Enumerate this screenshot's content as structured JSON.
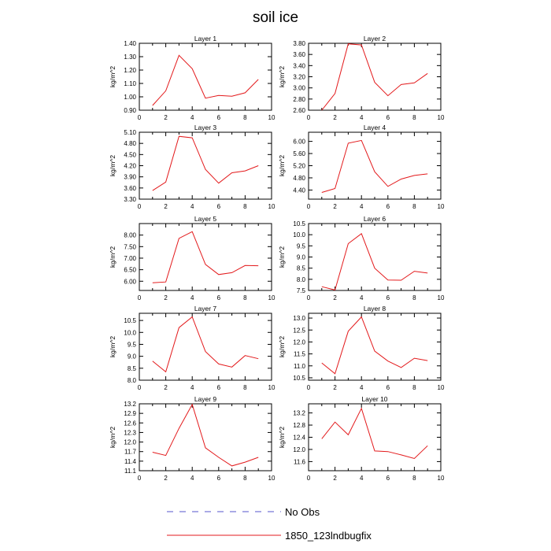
{
  "figure": {
    "title": "soil ice",
    "legend": [
      {
        "label": "No Obs",
        "color": "#5555cc",
        "dash": "dashed"
      },
      {
        "label": "1850_123lndbugfix",
        "color": "#e31a1c",
        "dash": "solid"
      }
    ]
  },
  "chart_data": [
    {
      "type": "line",
      "title": "Layer 1",
      "ylabel": "kg/m^2",
      "xlim": [
        0,
        10
      ],
      "ylim": [
        0.9,
        1.4
      ],
      "xticks": [
        "0",
        "2",
        "4",
        "6",
        "8",
        "10"
      ],
      "yticks": [
        "0.90",
        "1.00",
        "1.10",
        "1.20",
        "1.30",
        "1.40"
      ],
      "series": [
        {
          "color": "#e31a1c",
          "x": [
            1,
            2,
            3,
            4,
            5,
            6,
            7,
            8,
            9
          ],
          "y": [
            0.935,
            1.045,
            1.31,
            1.21,
            0.99,
            1.01,
            1.005,
            1.03,
            1.13
          ]
        }
      ]
    },
    {
      "type": "line",
      "title": "Layer 2",
      "ylabel": "kg/m^2",
      "xlim": [
        0,
        10
      ],
      "ylim": [
        2.6,
        3.8
      ],
      "xticks": [
        "0",
        "2",
        "4",
        "6",
        "8",
        "10"
      ],
      "yticks": [
        "2.60",
        "2.80",
        "3.00",
        "3.20",
        "3.40",
        "3.60",
        "3.80"
      ],
      "series": [
        {
          "color": "#e31a1c",
          "x": [
            1,
            2,
            3,
            4,
            5,
            6,
            7,
            8,
            9
          ],
          "y": [
            2.6,
            2.9,
            3.79,
            3.77,
            3.1,
            2.86,
            3.06,
            3.09,
            3.26
          ]
        }
      ]
    },
    {
      "type": "line",
      "title": "Layer 3",
      "ylabel": "kg/m^2",
      "xlim": [
        0,
        10
      ],
      "ylim": [
        3.3,
        5.1
      ],
      "xticks": [
        "0",
        "2",
        "4",
        "6",
        "8",
        "10"
      ],
      "yticks": [
        "3.30",
        "3.60",
        "3.90",
        "4.20",
        "4.50",
        "4.80",
        "5.10"
      ],
      "series": [
        {
          "color": "#e31a1c",
          "x": [
            1,
            2,
            3,
            4,
            5,
            6,
            7,
            8,
            9
          ],
          "y": [
            3.53,
            3.76,
            4.99,
            4.95,
            4.1,
            3.73,
            4.01,
            4.06,
            4.2
          ]
        }
      ]
    },
    {
      "type": "line",
      "title": "Layer 4",
      "ylabel": "kg/m^2",
      "xlim": [
        0,
        10
      ],
      "ylim": [
        4.1,
        6.3
      ],
      "xticks": [
        "0",
        "2",
        "4",
        "6",
        "8",
        "10"
      ],
      "yticks": [
        "4.40",
        "4.80",
        "5.20",
        "5.60",
        "6.00"
      ],
      "series": [
        {
          "color": "#e31a1c",
          "x": [
            1,
            2,
            3,
            4,
            5,
            6,
            7,
            8,
            9
          ],
          "y": [
            4.32,
            4.45,
            5.94,
            6.03,
            5.0,
            4.52,
            4.76,
            4.88,
            4.93
          ]
        }
      ]
    },
    {
      "type": "line",
      "title": "Layer 5",
      "ylabel": "kg/m^2",
      "xlim": [
        0,
        10
      ],
      "ylim": [
        5.6,
        8.5
      ],
      "xticks": [
        "0",
        "2",
        "4",
        "6",
        "8",
        "10"
      ],
      "yticks": [
        "6.00",
        "6.50",
        "7.00",
        "7.50",
        "8.00"
      ],
      "series": [
        {
          "color": "#e31a1c",
          "x": [
            1,
            2,
            3,
            4,
            5,
            6,
            7,
            8,
            9
          ],
          "y": [
            5.93,
            5.97,
            7.86,
            8.15,
            6.73,
            6.29,
            6.37,
            6.68,
            6.67
          ]
        }
      ]
    },
    {
      "type": "line",
      "title": "Layer 6",
      "ylabel": "kg/m^2",
      "xlim": [
        0,
        10
      ],
      "ylim": [
        7.5,
        10.5
      ],
      "xticks": [
        "0",
        "2",
        "4",
        "6",
        "8",
        "10"
      ],
      "yticks": [
        "7.5",
        "8.0",
        "8.5",
        "9.0",
        "9.5",
        "10.0",
        "10.5"
      ],
      "series": [
        {
          "color": "#e31a1c",
          "x": [
            1,
            2,
            3,
            4,
            5,
            6,
            7,
            8,
            9
          ],
          "y": [
            7.67,
            7.52,
            9.6,
            10.05,
            8.5,
            7.97,
            7.96,
            8.36,
            8.28
          ]
        }
      ]
    },
    {
      "type": "line",
      "title": "Layer 7",
      "ylabel": "kg/m^2",
      "xlim": [
        0,
        10
      ],
      "ylim": [
        8.0,
        10.8
      ],
      "xticks": [
        "0",
        "2",
        "4",
        "6",
        "8",
        "10"
      ],
      "yticks": [
        "8.0",
        "8.5",
        "9.0",
        "9.5",
        "10.0",
        "10.5"
      ],
      "series": [
        {
          "color": "#e31a1c",
          "x": [
            1,
            2,
            3,
            4,
            5,
            6,
            7,
            8,
            9
          ],
          "y": [
            8.8,
            8.35,
            10.2,
            10.65,
            9.2,
            8.68,
            8.55,
            9.03,
            8.9
          ]
        }
      ]
    },
    {
      "type": "line",
      "title": "Layer 8",
      "ylabel": "kg/m^2",
      "xlim": [
        0,
        10
      ],
      "ylim": [
        10.4,
        13.2
      ],
      "xticks": [
        "0",
        "2",
        "4",
        "6",
        "8",
        "10"
      ],
      "yticks": [
        "10.5",
        "11.0",
        "11.5",
        "12.0",
        "12.5",
        "13.0"
      ],
      "series": [
        {
          "color": "#e31a1c",
          "x": [
            1,
            2,
            3,
            4,
            5,
            6,
            7,
            8,
            9
          ],
          "y": [
            11.12,
            10.67,
            12.45,
            13.05,
            11.62,
            11.2,
            10.93,
            11.32,
            11.22
          ]
        }
      ]
    },
    {
      "type": "line",
      "title": "Layer 9",
      "ylabel": "kg/m^2",
      "xlim": [
        0,
        10
      ],
      "ylim": [
        11.1,
        13.2
      ],
      "xticks": [
        "0",
        "2",
        "4",
        "6",
        "8",
        "10"
      ],
      "yticks": [
        "11.1",
        "11.4",
        "11.7",
        "12.0",
        "12.3",
        "12.6",
        "12.9",
        "13.2"
      ],
      "series": [
        {
          "color": "#e31a1c",
          "x": [
            1,
            2,
            3,
            4,
            5,
            6,
            7,
            8,
            9
          ],
          "y": [
            11.68,
            11.58,
            12.43,
            13.18,
            11.82,
            11.52,
            11.25,
            11.37,
            11.52
          ]
        }
      ]
    },
    {
      "type": "line",
      "title": "Layer 10",
      "ylabel": "kg/m^2",
      "xlim": [
        0,
        10
      ],
      "ylim": [
        11.3,
        13.5
      ],
      "xticks": [
        "0",
        "2",
        "4",
        "6",
        "8",
        "10"
      ],
      "yticks": [
        "11.6",
        "12.0",
        "12.4",
        "12.8",
        "13.2"
      ],
      "series": [
        {
          "color": "#e31a1c",
          "x": [
            1,
            2,
            3,
            4,
            5,
            6,
            7,
            8,
            9
          ],
          "y": [
            12.35,
            12.9,
            12.48,
            13.35,
            11.95,
            11.93,
            11.82,
            11.7,
            12.12
          ]
        }
      ]
    }
  ]
}
